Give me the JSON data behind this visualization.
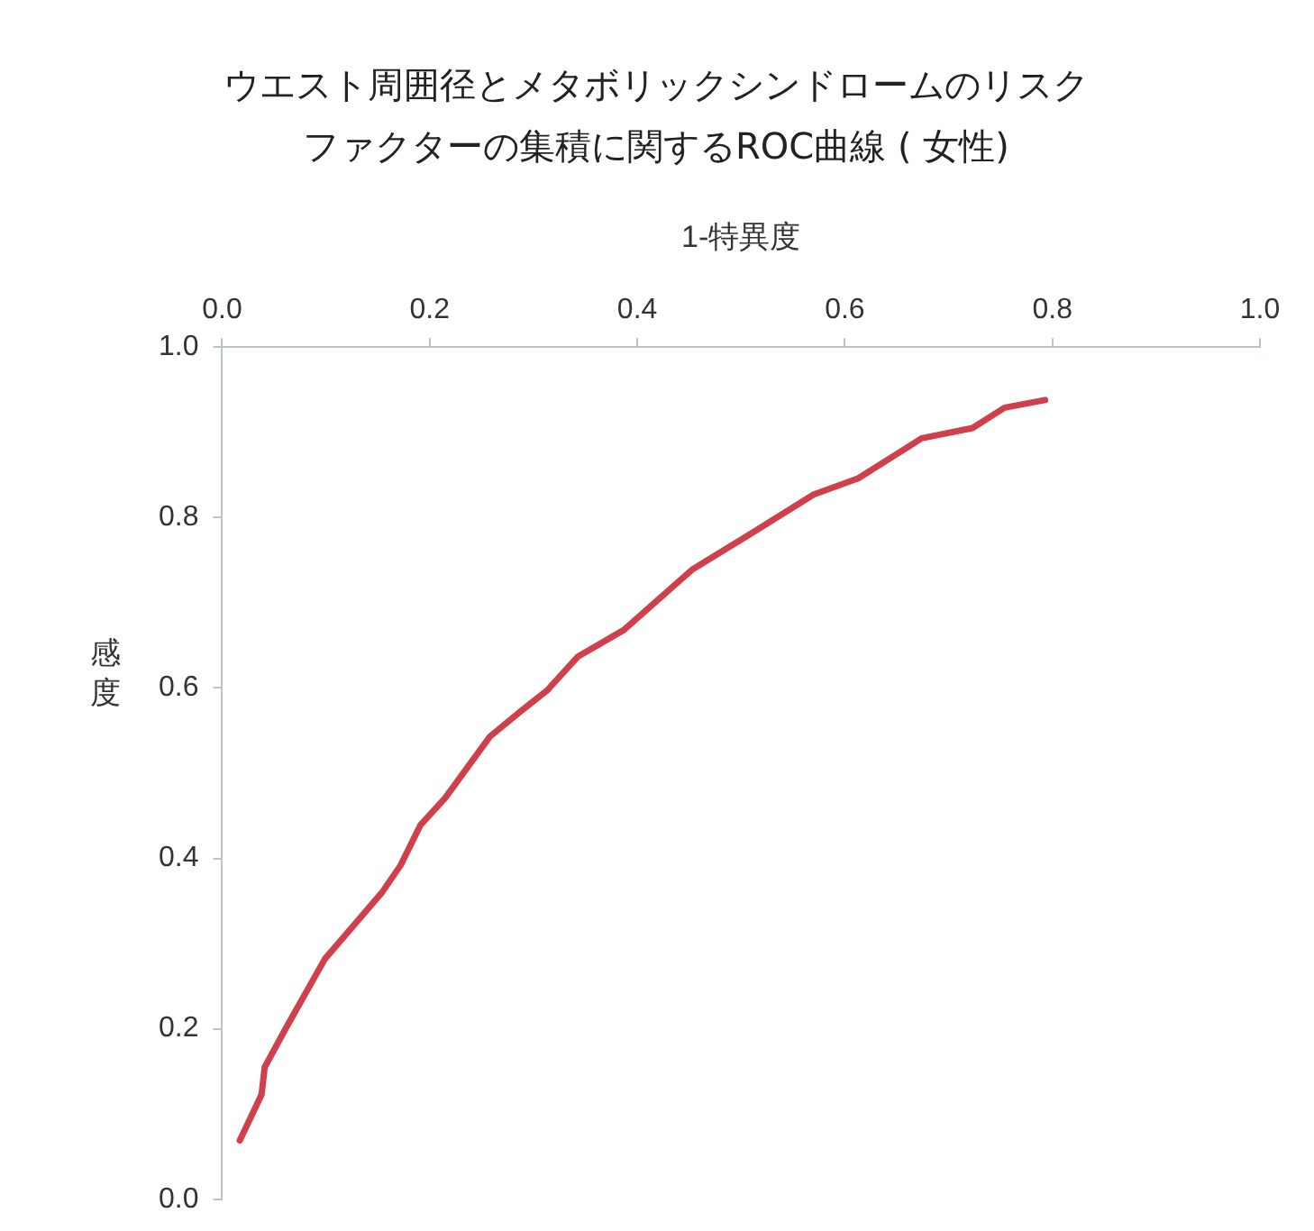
{
  "chart_data": {
    "type": "line",
    "title": "ウエスト周囲径とメタボリックシンドロームのリスクファクターの集積に関するROC曲線 ( 女性)",
    "xlabel": "1-特異度",
    "ylabel": "感度",
    "series": [
      {
        "color": "#d0404a",
        "x": [
          0.017,
          0.038,
          0.041,
          0.062,
          0.099,
          0.154,
          0.172,
          0.191,
          0.215,
          0.258,
          0.288,
          0.313,
          0.343,
          0.387,
          0.453,
          0.508,
          0.57,
          0.613,
          0.674,
          0.723,
          0.754,
          0.793
        ],
        "values": [
          0.069,
          0.123,
          0.155,
          0.202,
          0.282,
          0.36,
          0.392,
          0.439,
          0.471,
          0.543,
          0.573,
          0.597,
          0.637,
          0.668,
          0.739,
          0.78,
          0.827,
          0.846,
          0.893,
          0.905,
          0.929,
          0.938
        ]
      }
    ],
    "xlim": [
      0,
      1
    ],
    "ylim": [
      0,
      1
    ],
    "xticks": [
      {
        "value": 0,
        "label": "0.0"
      },
      {
        "value": 0.2,
        "label": "0.2"
      },
      {
        "value": 0.4,
        "label": "0.4"
      },
      {
        "value": 0.6,
        "label": "0.6"
      },
      {
        "value": 0.8,
        "label": "0.8"
      },
      {
        "value": 1,
        "label": "1.0"
      }
    ],
    "yticks": [
      {
        "value": 0,
        "label": "0.0"
      },
      {
        "value": 0.2,
        "label": "0.2"
      },
      {
        "value": 0.4,
        "label": "0.4"
      },
      {
        "value": 0.6,
        "label": "0.6"
      },
      {
        "value": 0.8,
        "label": "0.8"
      },
      {
        "value": 1,
        "label": "1.0"
      }
    ],
    "grid": false,
    "legend": false,
    "marker": "none",
    "line_style": "solid"
  }
}
